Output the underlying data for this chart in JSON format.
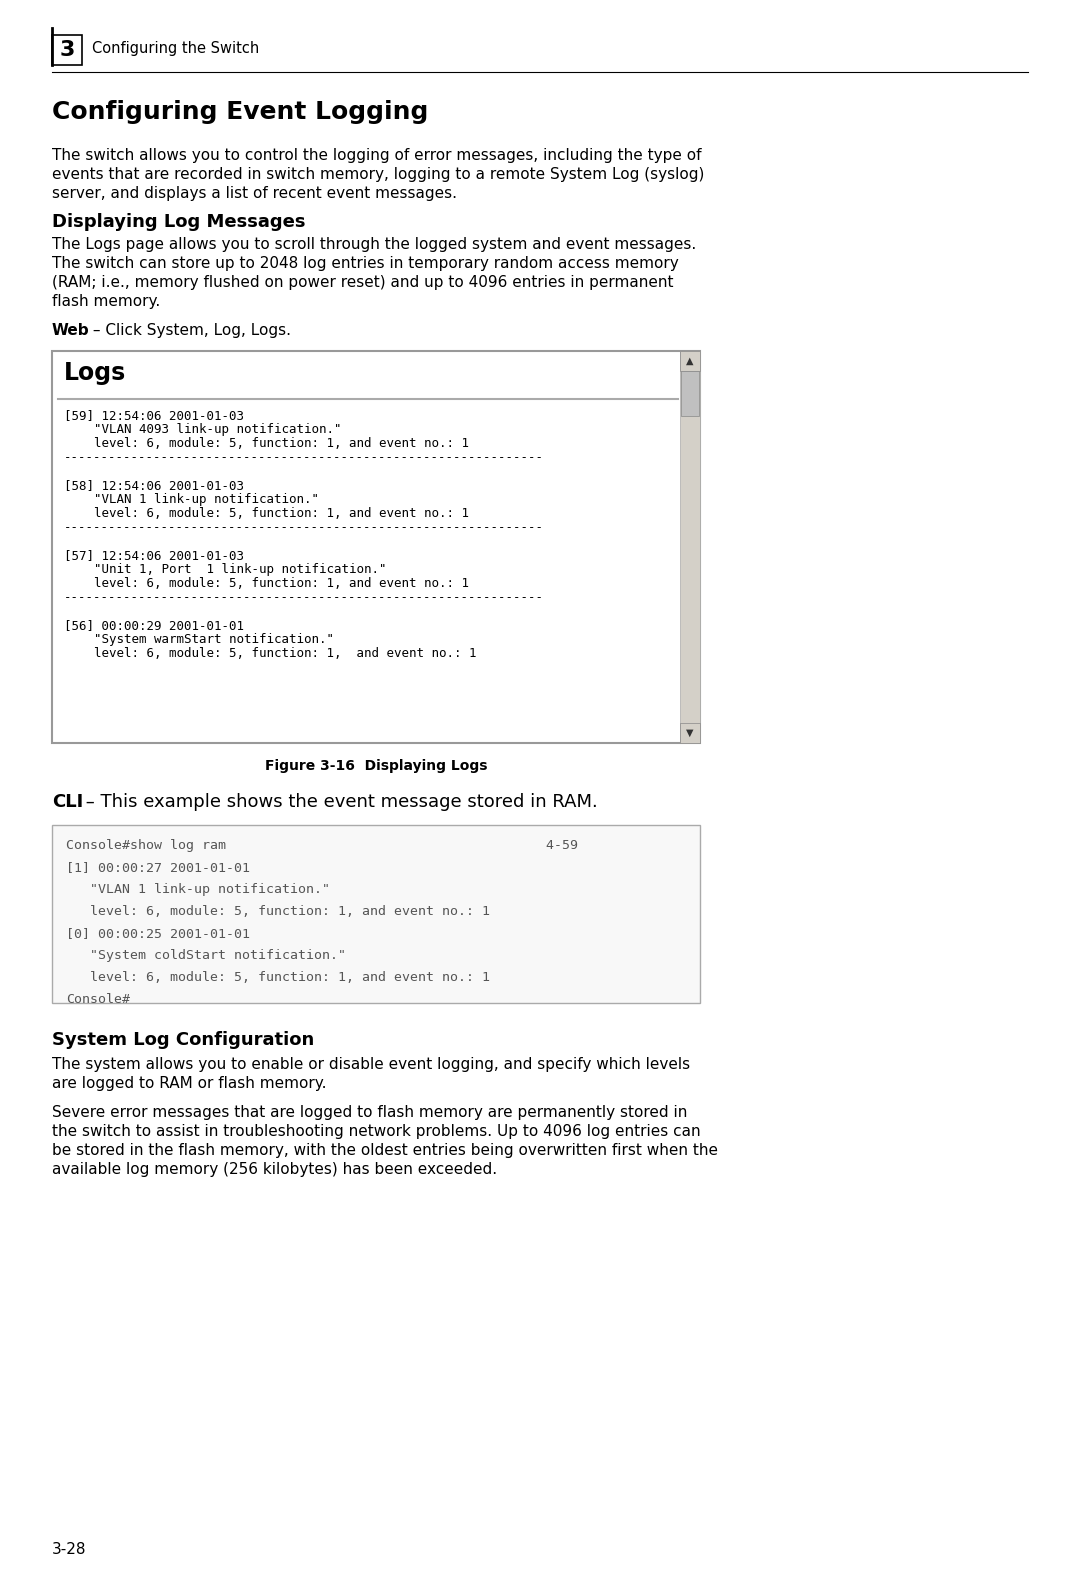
{
  "bg_color": "#ffffff",
  "chapter_number": "3",
  "chapter_title": "Configuring the Switch",
  "section_title": "Configuring Event Logging",
  "intro_text": "The switch allows you to control the logging of error messages, including the type of\nevents that are recorded in switch memory, logging to a remote System Log (syslog)\nserver, and displays a list of recent event messages.",
  "subsection1_title": "Displaying Log Messages",
  "subsection1_body": "The Logs page allows you to scroll through the logged system and event messages.\nThe switch can store up to 2048 log entries in temporary random access memory\n(RAM; i.e., memory flushed on power reset) and up to 4096 entries in permanent\nflash memory.",
  "web_label": "Web",
  "web_text": " – Click System, Log, Logs.",
  "logs_box_title": "Logs",
  "logs_box_content": "[59] 12:54:06 2001-01-03\n    \"VLAN 4093 link-up notification.\"\n    level: 6, module: 5, function: 1, and event no.: 1\n----------------------------------------------------------------\n\n[58] 12:54:06 2001-01-03\n    \"VLAN 1 link-up notification.\"\n    level: 6, module: 5, function: 1, and event no.: 1\n----------------------------------------------------------------\n\n[57] 12:54:06 2001-01-03\n    \"Unit 1, Port  1 link-up notification.\"\n    level: 6, module: 5, function: 1, and event no.: 1\n----------------------------------------------------------------\n\n[56] 00:00:29 2001-01-01\n    \"System warmStart notification.\"\n    level: 6, module: 5, function: 1,  and event no.: 1",
  "figure_caption": "Figure 3-16  Displaying Logs",
  "cli_label": "CLI",
  "cli_text": " – This example shows the event message stored in RAM.",
  "cli_box_content": "Console#show log ram                                        4-59\n[1] 00:00:27 2001-01-01\n   \"VLAN 1 link-up notification.\"\n   level: 6, module: 5, function: 1, and event no.: 1\n[0] 00:00:25 2001-01-01\n   \"System coldStart notification.\"\n   level: 6, module: 5, function: 1, and event no.: 1\nConsole#",
  "subsection2_title": "System Log Configuration",
  "subsection2_body1": "The system allows you to enable or disable event logging, and specify which levels\nare logged to RAM or flash memory.",
  "subsection2_body2": "Severe error messages that are logged to flash memory are permanently stored in\nthe switch to assist in troubleshooting network problems. Up to 4096 log entries can\nbe stored in the flash memory, with the oldest entries being overwritten first when the\navailable log memory (256 kilobytes) has been exceeded.",
  "page_number": "3-28"
}
